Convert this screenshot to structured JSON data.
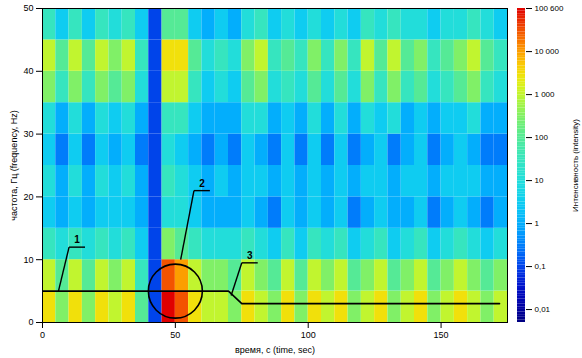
{
  "chart_data": {
    "type": "heatmap",
    "x_label": "время, с (time, sec)",
    "y_label": "частота, Гц (frequency, Hz)",
    "colorbar_label": "Интенсивность (intensity)",
    "xlim": [
      0,
      175
    ],
    "xticks": [
      0,
      50,
      100,
      150
    ],
    "ylim": [
      0,
      50
    ],
    "yticks": [
      0,
      10,
      20,
      30,
      40,
      50
    ],
    "x_bins": [
      0,
      5,
      10,
      15,
      20,
      25,
      30,
      35,
      40,
      45,
      50,
      55,
      60,
      65,
      70,
      75,
      80,
      85,
      90,
      95,
      100,
      105,
      110,
      115,
      120,
      125,
      130,
      135,
      140,
      145,
      150,
      155,
      160,
      165,
      170,
      175
    ],
    "y_bins": [
      0,
      5,
      10,
      15,
      20,
      25,
      30,
      35,
      40,
      45,
      50
    ],
    "values": [
      [
        3000,
        300,
        3000,
        300,
        3000,
        1000,
        3000,
        100,
        0.1,
        100000,
        30000,
        3000,
        1000,
        1000,
        300,
        3000,
        1000,
        300,
        3000,
        300,
        3000,
        1000,
        3000,
        300,
        1000,
        3000,
        300,
        1000,
        3000,
        300,
        1000,
        3000,
        1000,
        300,
        1000
      ],
      [
        1000,
        100,
        1000,
        100,
        1000,
        300,
        1000,
        30,
        0.1,
        30000,
        10000,
        1000,
        300,
        300,
        100,
        1000,
        300,
        100,
        1000,
        100,
        1000,
        300,
        1000,
        100,
        300,
        1000,
        100,
        300,
        1000,
        100,
        300,
        1000,
        300,
        100,
        300
      ],
      [
        30,
        10,
        30,
        10,
        30,
        10,
        30,
        3,
        0.1,
        300,
        100,
        30,
        10,
        10,
        10,
        30,
        10,
        3,
        30,
        3,
        30,
        10,
        30,
        3,
        10,
        30,
        3,
        10,
        30,
        3,
        10,
        30,
        10,
        3,
        10
      ],
      [
        3,
        1,
        3,
        1,
        3,
        3,
        3,
        1,
        0.1,
        10,
        10,
        3,
        1,
        1,
        1,
        3,
        1,
        0.3,
        3,
        1,
        3,
        1,
        3,
        0.3,
        1,
        3,
        1,
        1,
        3,
        0.3,
        1,
        3,
        1,
        0.3,
        1
      ],
      [
        10,
        1,
        10,
        1,
        10,
        3,
        10,
        1,
        0.1,
        30,
        10,
        3,
        1,
        3,
        1,
        3,
        3,
        1,
        3,
        1,
        3,
        1,
        3,
        1,
        3,
        3,
        1,
        3,
        3,
        1,
        3,
        3,
        3,
        1,
        1
      ],
      [
        3,
        0.3,
        3,
        0.3,
        3,
        1,
        3,
        0.3,
        0.1,
        10,
        3,
        1,
        0.3,
        1,
        0.3,
        3,
        1,
        0.3,
        3,
        0.3,
        3,
        0.3,
        3,
        0.3,
        1,
        3,
        0.3,
        1,
        3,
        0.3,
        1,
        3,
        1,
        0.3,
        0.3
      ],
      [
        10,
        1,
        10,
        1,
        10,
        3,
        10,
        1,
        0.1,
        30,
        30,
        3,
        1,
        1,
        1,
        10,
        10,
        1,
        3,
        1,
        10,
        1,
        10,
        1,
        10,
        3,
        10,
        1,
        3,
        1,
        3,
        3,
        10,
        1,
        1
      ],
      [
        300,
        30,
        300,
        30,
        300,
        100,
        300,
        10,
        0.1,
        1000,
        1000,
        30,
        3,
        10,
        3,
        100,
        300,
        10,
        30,
        10,
        100,
        10,
        100,
        10,
        300,
        30,
        300,
        30,
        100,
        10,
        30,
        100,
        300,
        30,
        10
      ],
      [
        1000,
        100,
        1000,
        100,
        1000,
        300,
        1000,
        30,
        0.1,
        3000,
        3000,
        100,
        10,
        30,
        10,
        300,
        1000,
        30,
        100,
        30,
        300,
        30,
        300,
        30,
        1000,
        100,
        1000,
        100,
        300,
        30,
        100,
        300,
        1000,
        100,
        30
      ],
      [
        30,
        3,
        30,
        3,
        30,
        10,
        30,
        3,
        0.1,
        100,
        100,
        3,
        1,
        3,
        1,
        10,
        30,
        3,
        10,
        3,
        10,
        3,
        10,
        3,
        30,
        10,
        30,
        10,
        10,
        3,
        10,
        10,
        30,
        10,
        3
      ]
    ],
    "clim": [
      0.005,
      100600
    ],
    "cticks": [
      {
        "value": 0.01,
        "label": "0,01"
      },
      {
        "value": 0.1,
        "label": "0,1"
      },
      1,
      10,
      100,
      {
        "value": 1000,
        "label": "1 000"
      },
      {
        "value": 10000,
        "label": "10 000"
      },
      {
        "value": 100600,
        "label": "100 600"
      }
    ],
    "line": {
      "x": [
        0,
        70,
        75,
        172
      ],
      "y": [
        5,
        5,
        3,
        3
      ]
    },
    "circle": {
      "x": 50,
      "y": 5
    },
    "annotations": [
      {
        "text": "1",
        "x": 10,
        "y": 12,
        "target_x": 6,
        "target_y": 5
      },
      {
        "text": "2",
        "x": 57,
        "y": 21,
        "target_x": 52,
        "target_y": 10
      },
      {
        "text": "3",
        "x": 75,
        "y": 9.5,
        "target_x": 71,
        "target_y": 4.3
      }
    ]
  }
}
